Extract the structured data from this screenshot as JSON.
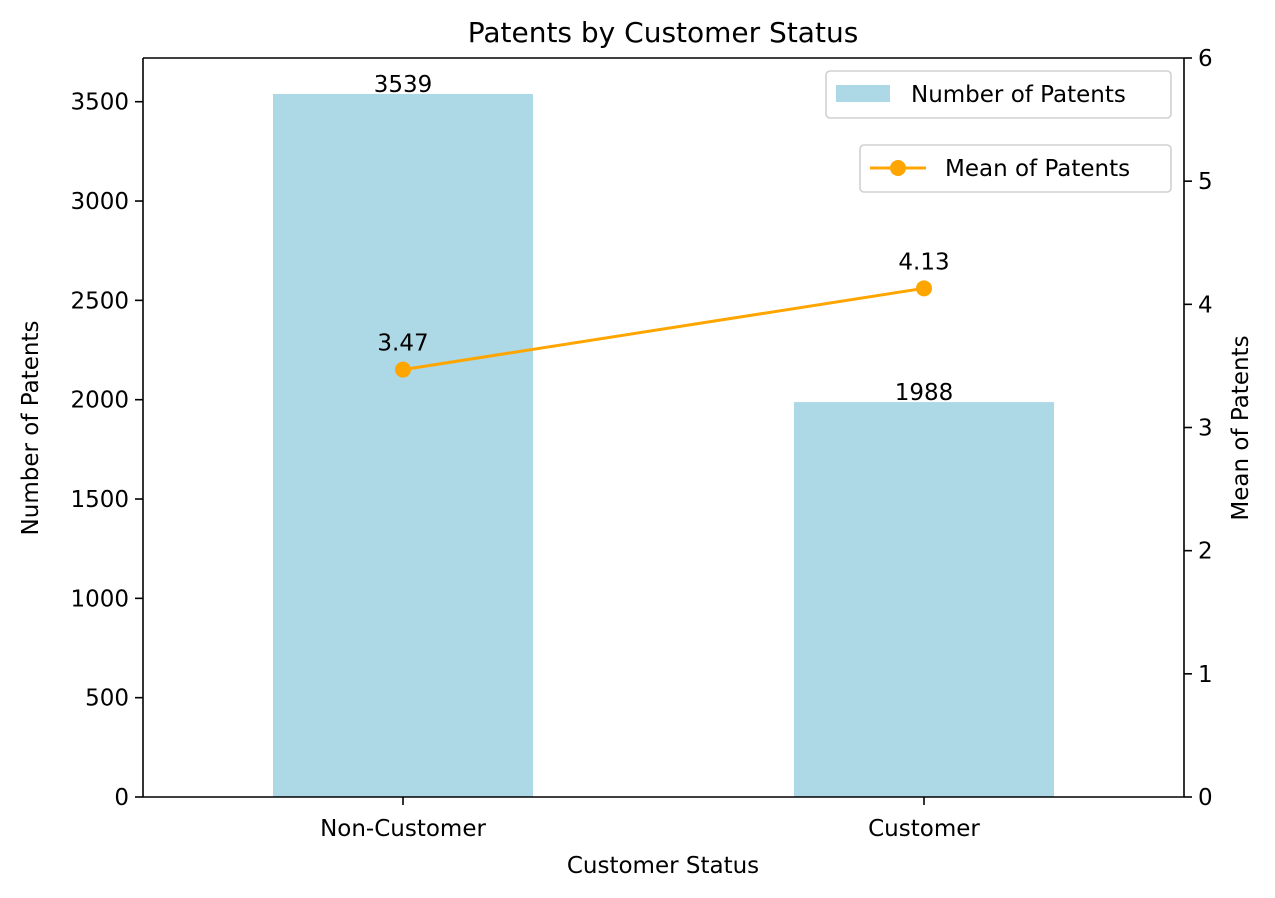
{
  "chart_data": {
    "type": "bar",
    "title": "Patents by Customer Status",
    "xlabel": "Customer Status",
    "ylabel": "Number of Patents",
    "y2label": "Mean of Patents",
    "categories": [
      "Non-Customer",
      "Customer"
    ],
    "series": [
      {
        "name": "Number of Patents",
        "kind": "bar",
        "axis": "left",
        "color": "#add8e6",
        "values": [
          3539,
          1988
        ],
        "value_labels": [
          "3539",
          "1988"
        ]
      },
      {
        "name": "Mean of Patents",
        "kind": "line",
        "axis": "right",
        "color": "#ffa500",
        "marker": "circle",
        "values": [
          3.47,
          4.13
        ],
        "value_labels": [
          "3.47",
          "4.13"
        ]
      }
    ],
    "ylim": [
      0,
      3720
    ],
    "yticks": [
      0,
      500,
      1000,
      1500,
      2000,
      2500,
      3000,
      3500
    ],
    "ytick_labels": [
      "0",
      "500",
      "1000",
      "1500",
      "2000",
      "2500",
      "3000",
      "3500"
    ],
    "y2lim": [
      0,
      6
    ],
    "y2ticks": [
      0,
      1,
      2,
      3,
      4,
      5,
      6
    ],
    "y2tick_labels": [
      "0",
      "1",
      "2",
      "3",
      "4",
      "5",
      "6"
    ],
    "grid": false,
    "legend": [
      {
        "label": "Number of Patents",
        "placement": "top-right"
      },
      {
        "label": "Mean of Patents",
        "placement": "top-right, below first legend"
      }
    ]
  }
}
